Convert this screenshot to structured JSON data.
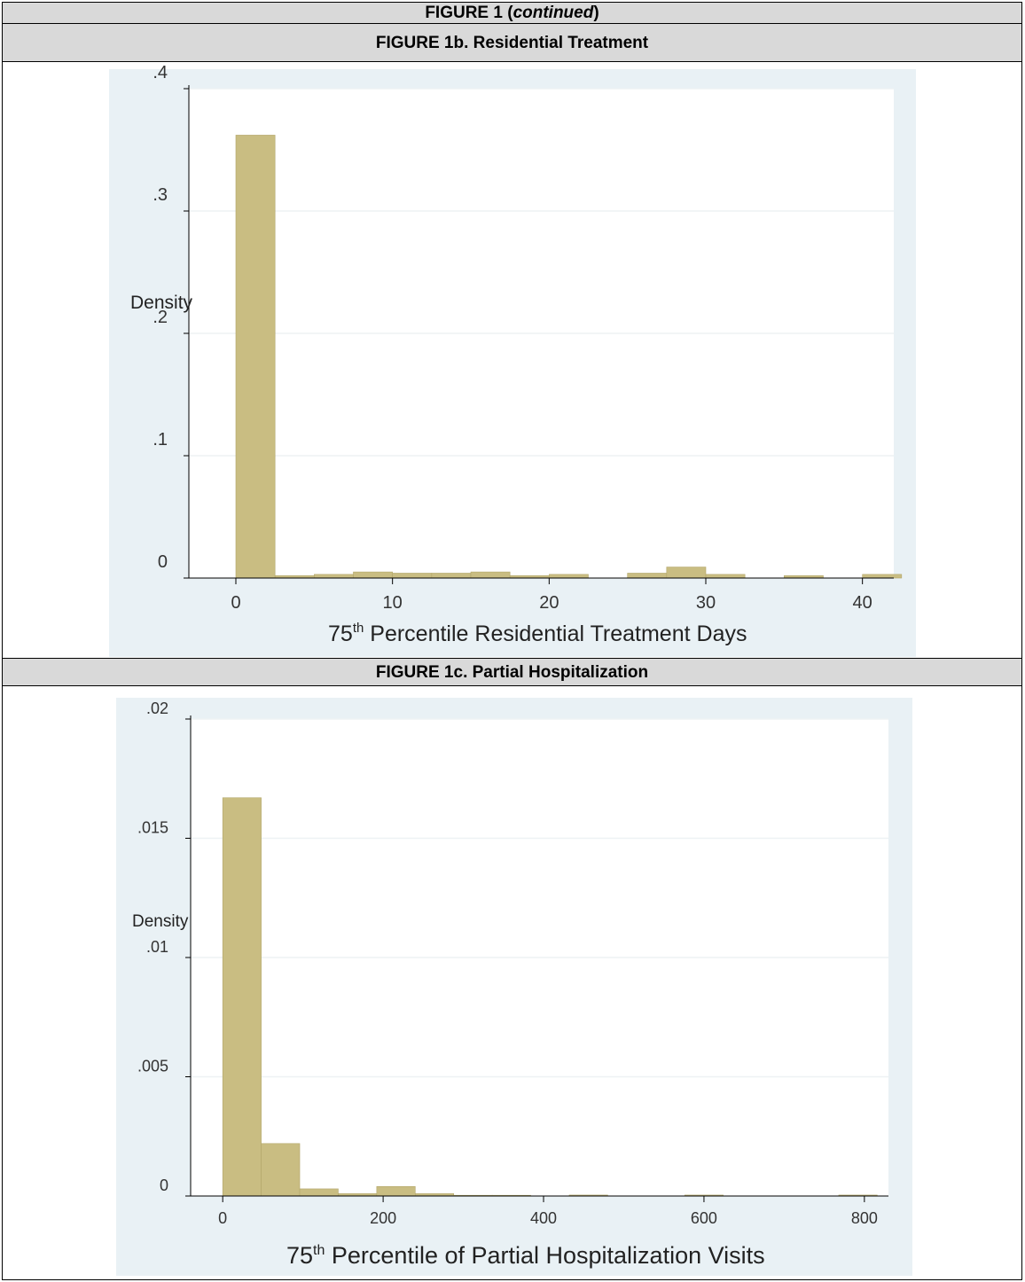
{
  "header": {
    "prefix": "FIGURE 1 (",
    "italic": "continued",
    "suffix": ")"
  },
  "colors": {
    "bar": "#c9bd82",
    "bar_edge": "#b2a66a",
    "panel_bg": "#e9f1f5",
    "grid": "#eef2f4",
    "header_bg": "#d9d9d9"
  },
  "chart_data": [
    {
      "type": "bar",
      "title": "FIGURE 1b. Residential Treatment",
      "ylabel": "Density",
      "xlabel": {
        "pre": "75",
        "sup": "th",
        "post": " Percentile Residential Treatment Days"
      },
      "xlim": [
        -3,
        42
      ],
      "ylim": [
        0,
        0.4
      ],
      "xticks": [
        0,
        10,
        20,
        30,
        40
      ],
      "xtick_labels": [
        "0",
        "10",
        "20",
        "30",
        "40"
      ],
      "yticks": [
        0,
        0.1,
        0.2,
        0.3,
        0.4
      ],
      "ytick_labels": [
        "0",
        ".1",
        ".2",
        ".3",
        ".4"
      ],
      "grid": true,
      "bins": [
        {
          "x0": 0,
          "x1": 2.5,
          "y": 0.362
        },
        {
          "x0": 2.5,
          "x1": 5,
          "y": 0.002
        },
        {
          "x0": 5,
          "x1": 7.5,
          "y": 0.003
        },
        {
          "x0": 7.5,
          "x1": 10,
          "y": 0.005
        },
        {
          "x0": 10,
          "x1": 12.5,
          "y": 0.004
        },
        {
          "x0": 12.5,
          "x1": 15,
          "y": 0.004
        },
        {
          "x0": 15,
          "x1": 17.5,
          "y": 0.005
        },
        {
          "x0": 17.5,
          "x1": 20,
          "y": 0.002
        },
        {
          "x0": 20,
          "x1": 22.5,
          "y": 0.003
        },
        {
          "x0": 25,
          "x1": 27.5,
          "y": 0.004
        },
        {
          "x0": 27.5,
          "x1": 30,
          "y": 0.009
        },
        {
          "x0": 30,
          "x1": 32.5,
          "y": 0.003
        },
        {
          "x0": 35,
          "x1": 37.5,
          "y": 0.002
        },
        {
          "x0": 40,
          "x1": 42.5,
          "y": 0.003
        }
      ]
    },
    {
      "type": "bar",
      "title": "FIGURE 1c. Partial Hospitalization",
      "ylabel": "Density",
      "xlabel": {
        "pre": "75",
        "sup": "th",
        "post": " Percentile of Partial Hospitalization Visits"
      },
      "xlim": [
        -40,
        830
      ],
      "ylim": [
        0,
        0.02
      ],
      "xticks": [
        0,
        200,
        400,
        600,
        800
      ],
      "xtick_labels": [
        "0",
        "200",
        "400",
        "600",
        "800"
      ],
      "yticks": [
        0,
        0.005,
        0.01,
        0.015,
        0.02
      ],
      "ytick_labels": [
        "0",
        ".005",
        ".01",
        ".015",
        ".02"
      ],
      "grid": true,
      "bins": [
        {
          "x0": 0,
          "x1": 48,
          "y": 0.0167
        },
        {
          "x0": 48,
          "x1": 96,
          "y": 0.0022
        },
        {
          "x0": 96,
          "x1": 144,
          "y": 0.0003
        },
        {
          "x0": 144,
          "x1": 192,
          "y": 0.0001
        },
        {
          "x0": 192,
          "x1": 240,
          "y": 0.0004
        },
        {
          "x0": 240,
          "x1": 288,
          "y": 0.0001
        },
        {
          "x0": 288,
          "x1": 336,
          "y": 3e-05
        },
        {
          "x0": 336,
          "x1": 384,
          "y": 3e-05
        },
        {
          "x0": 432,
          "x1": 480,
          "y": 4e-05
        },
        {
          "x0": 576,
          "x1": 624,
          "y": 4e-05
        },
        {
          "x0": 768,
          "x1": 816,
          "y": 4e-05
        }
      ]
    }
  ]
}
